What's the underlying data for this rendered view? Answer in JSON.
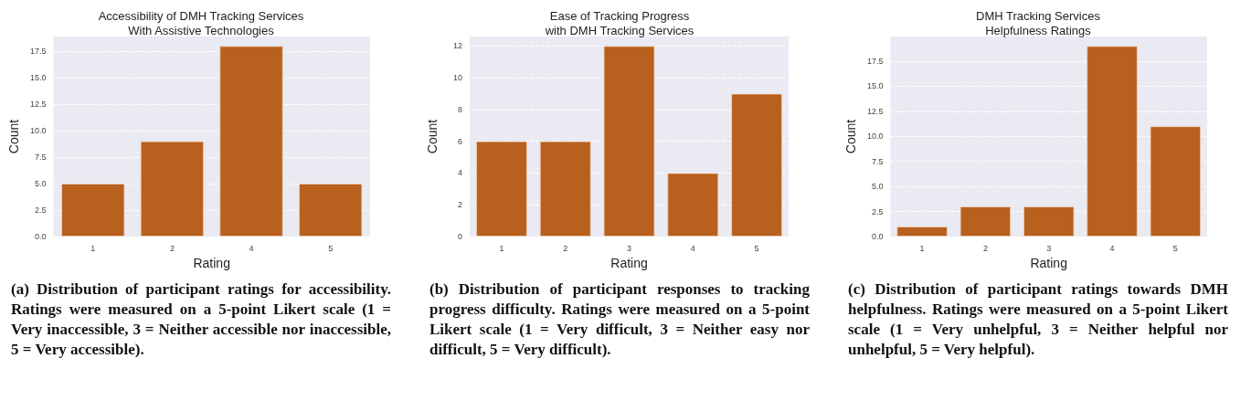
{
  "chart_data": [
    {
      "type": "bar",
      "title": "Accessibility of DMH Tracking Services\nWith Assistive Technologies",
      "xlabel": "Rating",
      "ylabel": "Count",
      "categories": [
        "1",
        "2",
        "4",
        "5"
      ],
      "values": [
        5,
        9,
        18,
        5
      ],
      "color": "#b8601e",
      "ylim": [
        0,
        18.9
      ],
      "yticks": [
        {
          "value": 0,
          "label": "0.0"
        },
        2.5,
        {
          "value": 5,
          "label": "5.0"
        },
        7.5,
        {
          "value": 10,
          "label": "10.0"
        },
        12.5,
        {
          "value": 15,
          "label": "15.0"
        },
        17.5
      ],
      "grid": "y",
      "annotations": [
        "(a) Distribution of participant ratings for accessibility. Ratings were measured on a 5-point Likert scale (1 = Very inaccessible, 3 = Neither accessible nor inaccessible, 5 = Very accessible)."
      ]
    },
    {
      "type": "bar",
      "title": "Ease of Tracking Progress\nwith DMH Tracking Services",
      "xlabel": "Rating",
      "ylabel": "Count",
      "categories": [
        "1",
        "2",
        "3",
        "4",
        "5"
      ],
      "values": [
        6,
        6,
        12,
        4,
        9
      ],
      "color": "#b8601e",
      "ylim": [
        0,
        12.6
      ],
      "yticks": [
        0,
        2,
        4,
        6,
        8,
        10,
        12
      ],
      "grid": "y",
      "annotations": [
        "(b) Distribution of participant responses to tracking progress difficulty. Ratings were measured on a 5-point Likert scale (1 = Very difficult, 3 = Neither easy nor difficult, 5 = Very difficult)."
      ]
    },
    {
      "type": "bar",
      "title": "DMH Tracking Services\nHelpfulness Ratings",
      "xlabel": "Rating",
      "ylabel": "Count",
      "categories": [
        "1",
        "2",
        "3",
        "4",
        "5"
      ],
      "values": [
        1,
        3,
        3,
        19,
        11
      ],
      "color": "#b8601e",
      "ylim": [
        0,
        19.95
      ],
      "yticks": [
        {
          "value": 0,
          "label": "0.0"
        },
        2.5,
        {
          "value": 5,
          "label": "5.0"
        },
        7.5,
        {
          "value": 10,
          "label": "10.0"
        },
        12.5,
        {
          "value": 15,
          "label": "15.0"
        },
        17.5
      ],
      "grid": "y",
      "annotations": [
        "(c) Distribution of participant ratings towards DMH helpfulness. Ratings were measured on a 5-point Likert scale (1 = Very unhelpful, 3 = Neither helpful nor unhelpful, 5 = Very helpful)."
      ]
    }
  ]
}
